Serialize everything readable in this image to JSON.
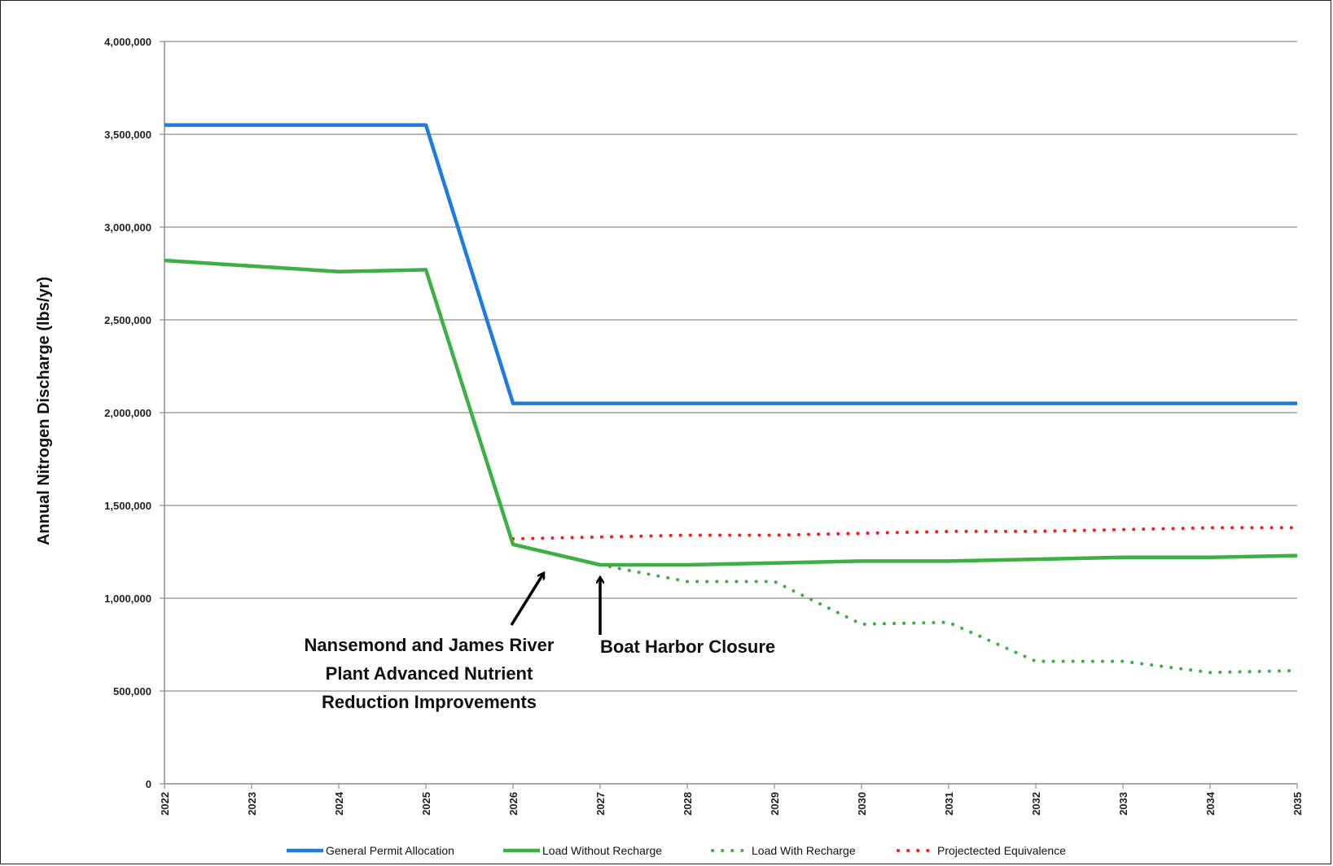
{
  "chart_data": {
    "type": "line",
    "title": "",
    "xlabel": "",
    "ylabel": "Annual Nitrogen  Discharge (lbs/yr)",
    "x": [
      "2022",
      "2023",
      "2024",
      "2025",
      "2026",
      "2027",
      "2028",
      "2029",
      "2030",
      "2031",
      "2032",
      "2033",
      "2034",
      "2035"
    ],
    "ylim": [
      0,
      4000000
    ],
    "y_ticks": [
      0,
      500000,
      1000000,
      1500000,
      2000000,
      2500000,
      3000000,
      3500000,
      4000000
    ],
    "y_tick_labels": [
      "0",
      "500,000",
      "1,000,000",
      "1,500,000",
      "2,000,000",
      "2,500,000",
      "3,000,000",
      "3,500,000",
      "4,000,000"
    ],
    "grid": "horizontal",
    "legend_position": "bottom",
    "series": [
      {
        "name": "General Permit Allocation",
        "color": "#1e7be0",
        "style": "solid",
        "values": [
          3550000,
          3550000,
          3550000,
          3550000,
          2050000,
          2050000,
          2050000,
          2050000,
          2050000,
          2050000,
          2050000,
          2050000,
          2050000,
          2050000
        ]
      },
      {
        "name": "Load Without Recharge",
        "color": "#3cb043",
        "style": "solid",
        "values": [
          2820000,
          2790000,
          2760000,
          2770000,
          1290000,
          1180000,
          1180000,
          1190000,
          1200000,
          1200000,
          1210000,
          1220000,
          1220000,
          1230000
        ]
      },
      {
        "name": "Load With Recharge",
        "color": "#3cb043",
        "style": "dotted",
        "values": [
          null,
          null,
          null,
          null,
          null,
          1180000,
          1090000,
          1090000,
          860000,
          870000,
          660000,
          660000,
          600000,
          610000
        ]
      },
      {
        "name": "Projectected Equivalence",
        "color": "#ff1a1a",
        "style": "dotted",
        "values": [
          null,
          null,
          null,
          null,
          1320000,
          1330000,
          1340000,
          1340000,
          1350000,
          1360000,
          1360000,
          1370000,
          1380000,
          1380000
        ]
      }
    ],
    "annotations": [
      {
        "lines": [
          "Nansemond and James River",
          "Plant Advanced Nutrient",
          "Reduction Improvements"
        ],
        "points_to": {
          "x": 2026.35,
          "y": 1230000
        }
      },
      {
        "lines": [
          "Boat Harbor Closure"
        ],
        "points_to": {
          "x": 2027,
          "y": 1180000
        }
      }
    ]
  }
}
